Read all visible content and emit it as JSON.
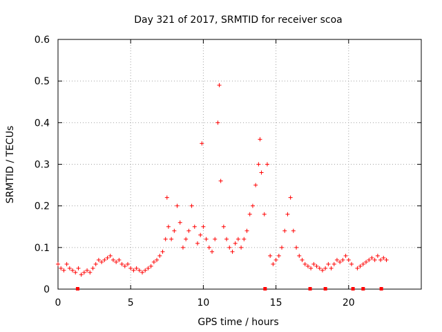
{
  "chart_data": {
    "type": "scatter",
    "title": "Day 321 of 2017, SRMTID for receiver scoa",
    "xlabel": "GPS time / hours",
    "ylabel": "SRMTID / TECUs",
    "xlim": [
      0,
      25
    ],
    "ylim": [
      0,
      0.6
    ],
    "xticks": [
      0,
      5,
      10,
      15,
      20
    ],
    "xtick_labels": [
      "0",
      "5",
      "10",
      "15",
      "20"
    ],
    "yticks": [
      0,
      0.1,
      0.2,
      0.3,
      0.4,
      0.5,
      0.6
    ],
    "ytick_labels": [
      "0",
      "0.1",
      "0.2",
      "0.3",
      "0.4",
      "0.5",
      "0.6"
    ],
    "grid": true,
    "marker": "+",
    "series_color": "#ff0000",
    "series": [
      {
        "name": "SRMTID",
        "x": [
          0.0,
          0.2,
          0.4,
          0.6,
          0.8,
          1.0,
          1.2,
          1.4,
          1.6,
          1.8,
          2.0,
          2.2,
          2.4,
          2.6,
          2.8,
          3.0,
          3.2,
          3.4,
          3.6,
          3.8,
          4.0,
          4.2,
          4.4,
          4.6,
          4.8,
          5.0,
          5.2,
          5.4,
          5.6,
          5.8,
          6.0,
          6.2,
          6.4,
          6.6,
          6.8,
          7.0,
          7.2,
          7.4,
          7.5,
          7.6,
          7.8,
          8.0,
          8.2,
          8.4,
          8.6,
          8.8,
          9.0,
          9.2,
          9.4,
          9.6,
          9.8,
          9.9,
          10.0,
          10.2,
          10.4,
          10.6,
          10.8,
          11.0,
          11.1,
          11.2,
          11.4,
          11.6,
          11.8,
          12.0,
          12.2,
          12.4,
          12.6,
          12.8,
          13.0,
          13.2,
          13.4,
          13.6,
          13.8,
          13.9,
          14.0,
          14.2,
          14.4,
          14.6,
          14.8,
          15.0,
          15.2,
          15.4,
          15.6,
          15.8,
          16.0,
          16.2,
          16.4,
          16.6,
          16.8,
          17.0,
          17.2,
          17.4,
          17.6,
          17.8,
          18.0,
          18.2,
          18.4,
          18.6,
          18.8,
          19.0,
          19.2,
          19.4,
          19.6,
          19.8,
          20.0,
          20.2,
          20.6,
          20.8,
          21.0,
          21.2,
          21.4,
          21.6,
          21.8,
          22.0,
          22.2,
          22.4,
          22.6
        ],
        "y": [
          0.06,
          0.05,
          0.045,
          0.06,
          0.05,
          0.045,
          0.04,
          0.05,
          0.035,
          0.04,
          0.045,
          0.04,
          0.05,
          0.06,
          0.07,
          0.065,
          0.07,
          0.075,
          0.08,
          0.07,
          0.065,
          0.07,
          0.06,
          0.055,
          0.06,
          0.05,
          0.045,
          0.05,
          0.045,
          0.04,
          0.045,
          0.05,
          0.055,
          0.065,
          0.07,
          0.08,
          0.09,
          0.12,
          0.22,
          0.15,
          0.12,
          0.14,
          0.2,
          0.16,
          0.1,
          0.12,
          0.14,
          0.2,
          0.15,
          0.11,
          0.13,
          0.35,
          0.15,
          0.12,
          0.1,
          0.09,
          0.12,
          0.4,
          0.49,
          0.26,
          0.15,
          0.12,
          0.1,
          0.09,
          0.11,
          0.12,
          0.1,
          0.12,
          0.14,
          0.18,
          0.2,
          0.25,
          0.3,
          0.36,
          0.28,
          0.18,
          0.3,
          0.08,
          0.06,
          0.07,
          0.08,
          0.1,
          0.14,
          0.18,
          0.22,
          0.14,
          0.1,
          0.08,
          0.07,
          0.06,
          0.055,
          0.05,
          0.06,
          0.055,
          0.05,
          0.045,
          0.05,
          0.06,
          0.05,
          0.06,
          0.07,
          0.065,
          0.07,
          0.08,
          0.07,
          0.06,
          0.05,
          0.055,
          0.06,
          0.065,
          0.07,
          0.075,
          0.07,
          0.08,
          0.07,
          0.075,
          0.07
        ]
      }
    ],
    "bottom_markers_x": [
      1.35,
      14.25,
      17.35,
      18.4,
      20.3,
      21.0,
      22.25
    ]
  }
}
